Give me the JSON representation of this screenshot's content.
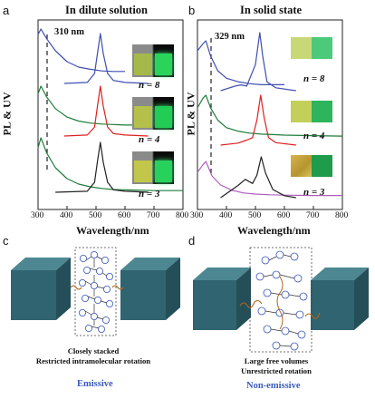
{
  "panel_labels": {
    "a": "a",
    "b": "b",
    "c": "c",
    "d": "d"
  },
  "panel_a": {
    "title": "In dilute solution",
    "peak_label": "310 nm",
    "ylabel": "PL & UV",
    "xlabel": "Wavelength/nm",
    "xticks": [
      "300",
      "400",
      "500",
      "600",
      "700",
      "800"
    ],
    "n_labels": [
      "n = 8",
      "n = 4",
      "n = 3"
    ]
  },
  "panel_b": {
    "title": "In solid state",
    "peak_label": "329 nm",
    "ylabel": "PL & UV",
    "xlabel": "Wavelength/nm",
    "xticks": [
      "300",
      "400",
      "500",
      "600",
      "700",
      "800"
    ],
    "n_labels": [
      "n = 8",
      "n = 4",
      "n = 3"
    ]
  },
  "panel_c": {
    "caption_line1": "Closely stacked",
    "caption_line2": "Restricted intramolecular rotation",
    "state": "Emissive"
  },
  "panel_d": {
    "caption_line1": "Large free volumes",
    "caption_line2": "Unrestricted rotation",
    "state": "Non-emissive"
  },
  "colors": {
    "n8": "#3f4fb0",
    "n4": "#1e7d3a",
    "n3_a": "#222222",
    "n3_b": "#b05cc0",
    "pl_red": "#e02020",
    "cube_front": "#2f6470",
    "cube_top": "#4d8892",
    "cube_side": "#244f59"
  },
  "chart_data": [
    {
      "type": "line",
      "title": "In dilute solution",
      "xlabel": "Wavelength/nm",
      "ylabel": "PL & UV",
      "xlim": [
        300,
        800
      ],
      "series": [
        {
          "name": "n = 8",
          "kind": "UV",
          "x": [
            300,
            310,
            330,
            360,
            400,
            440,
            480,
            520,
            560,
            600
          ],
          "y": [
            0.9,
            1.0,
            0.82,
            0.6,
            0.4,
            0.3,
            0.26,
            0.23,
            0.22,
            0.22
          ]
        },
        {
          "name": "n = 8",
          "kind": "PL",
          "x": [
            390,
            470,
            495,
            505,
            515,
            525,
            540,
            560,
            600,
            680
          ],
          "y": [
            0,
            0.02,
            0.2,
            0.6,
            1.0,
            0.6,
            0.2,
            0.06,
            0.02,
            0
          ]
        },
        {
          "name": "n = 4",
          "kind": "UV",
          "x": [
            300,
            310,
            330,
            360,
            400,
            440,
            480,
            520,
            560,
            600,
            640,
            680
          ],
          "y": [
            0.85,
            1.0,
            0.78,
            0.55,
            0.38,
            0.3,
            0.26,
            0.24,
            0.23,
            0.22,
            0.22,
            0.22
          ]
        },
        {
          "name": "n = 4",
          "kind": "PL",
          "x": [
            390,
            470,
            495,
            505,
            515,
            525,
            540,
            560,
            600,
            680
          ],
          "y": [
            0,
            0.02,
            0.18,
            0.6,
            1.0,
            0.6,
            0.18,
            0.05,
            0.02,
            0
          ]
        },
        {
          "name": "n = 3",
          "kind": "UV",
          "x": [
            300,
            310,
            330,
            360,
            400,
            440,
            480,
            520,
            560,
            640,
            700,
            800
          ],
          "y": [
            0.82,
            1.0,
            0.72,
            0.45,
            0.25,
            0.15,
            0.1,
            0.07,
            0.05,
            0.04,
            0.03,
            0.03
          ]
        },
        {
          "name": "n = 3",
          "kind": "PL",
          "x": [
            360,
            470,
            495,
            505,
            515,
            525,
            540,
            560,
            600,
            680
          ],
          "y": [
            0,
            0.02,
            0.2,
            0.62,
            1.0,
            0.6,
            0.2,
            0.05,
            0.02,
            0
          ]
        }
      ]
    },
    {
      "type": "line",
      "title": "In solid state",
      "xlabel": "Wavelength/nm",
      "ylabel": "PL & UV",
      "xlim": [
        300,
        800
      ],
      "series": [
        {
          "name": "n = 8",
          "kind": "UV",
          "x": [
            300,
            320,
            329,
            345,
            370,
            400,
            440,
            480,
            520,
            560,
            600
          ],
          "y": [
            0.8,
            0.95,
            1.0,
            0.7,
            0.4,
            0.25,
            0.18,
            0.14,
            0.12,
            0.12,
            0.12
          ]
        },
        {
          "name": "n = 8",
          "kind": "PL",
          "x": [
            380,
            430,
            450,
            470,
            500,
            515,
            525,
            540,
            570,
            640
          ],
          "y": [
            0,
            0.08,
            0.1,
            0.08,
            0.45,
            1.0,
            0.6,
            0.15,
            0.05,
            0
          ]
        },
        {
          "name": "n = 4",
          "kind": "UV",
          "x": [
            300,
            320,
            329,
            345,
            370,
            400,
            440,
            480,
            520,
            560,
            600,
            700,
            800
          ],
          "y": [
            0.75,
            0.95,
            1.0,
            0.75,
            0.5,
            0.35,
            0.28,
            0.24,
            0.22,
            0.21,
            0.2,
            0.19,
            0.18
          ]
        },
        {
          "name": "n = 4",
          "kind": "PL",
          "x": [
            380,
            440,
            470,
            490,
            505,
            518,
            530,
            545,
            570,
            640
          ],
          "y": [
            0,
            0.04,
            0.1,
            0.15,
            0.5,
            1.0,
            0.55,
            0.15,
            0.05,
            0
          ]
        },
        {
          "name": "n = 3",
          "kind": "UV",
          "x": [
            300,
            320,
            329,
            350,
            380,
            420,
            460,
            500,
            550,
            600,
            700,
            800
          ],
          "y": [
            0.7,
            0.92,
            1.0,
            0.6,
            0.35,
            0.2,
            0.13,
            0.1,
            0.08,
            0.07,
            0.06,
            0.06
          ]
        },
        {
          "name": "n = 3",
          "kind": "PL",
          "x": [
            380,
            410,
            440,
            465,
            490,
            505,
            520,
            535,
            560,
            600,
            640
          ],
          "y": [
            0,
            0.15,
            0.3,
            0.45,
            0.35,
            0.55,
            1.0,
            0.6,
            0.2,
            0.05,
            0
          ]
        }
      ]
    }
  ]
}
